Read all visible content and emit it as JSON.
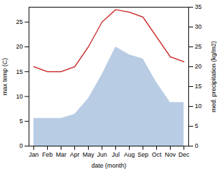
{
  "chart_data": {
    "type": "line",
    "xlabel": "date (month)",
    "ylabel": "max temp (C)",
    "y2label": "med. precipitation (kg/m2)",
    "categories": [
      "Jan",
      "Feb",
      "Mar",
      "Apr",
      "May",
      "Jun",
      "Jul",
      "Aug",
      "Sep",
      "Oct",
      "Nov",
      "Dec"
    ],
    "series": [
      {
        "type": "area",
        "axis": "y2",
        "color": "#b8cce4",
        "values": [
          7.0,
          7.0,
          7.0,
          8.0,
          12.0,
          18.0,
          25.0,
          23.0,
          22.0,
          16.0,
          11.0,
          11.0
        ]
      },
      {
        "type": "line",
        "color": "#cc3333",
        "values": [
          16.0,
          15.0,
          15.0,
          16.0,
          20.0,
          25.0,
          27.5,
          27.0,
          26.0,
          22.0,
          18.0,
          17.0
        ]
      }
    ],
    "ylim": [
      0,
      28
    ],
    "yticks": [
      0,
      5,
      10,
      15,
      20,
      25
    ],
    "y2lim": [
      0,
      35
    ],
    "y2ticks": [
      0,
      5,
      10,
      15,
      20,
      25,
      30,
      35
    ]
  }
}
